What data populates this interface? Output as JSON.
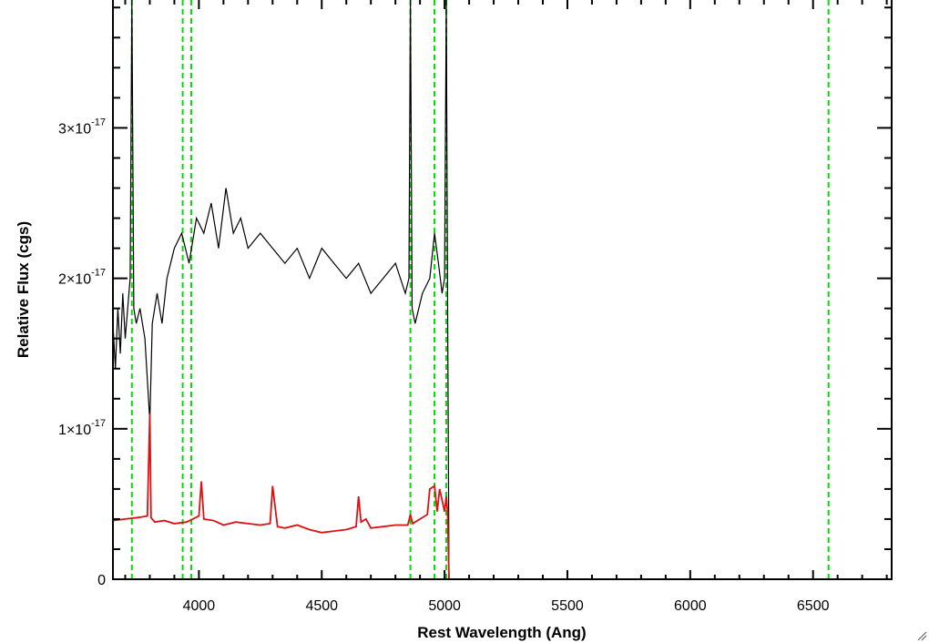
{
  "chart_data": {
    "type": "line",
    "title": "",
    "xlabel": "Rest Wavelength (Ang)",
    "ylabel": "Relative Flux (cgs)",
    "xlim": [
      3650,
      6820
    ],
    "ylim": [
      0,
      3.85e-17
    ],
    "x_ticks": [
      {
        "value": 4000,
        "label": "4000"
      },
      {
        "value": 4500,
        "label": "4500"
      },
      {
        "value": 5000,
        "label": "5000"
      },
      {
        "value": 5500,
        "label": "5500"
      },
      {
        "value": 6000,
        "label": "6000"
      },
      {
        "value": 6500,
        "label": "6500"
      }
    ],
    "y_ticks": [
      {
        "value": 0,
        "mantissa": "0",
        "exponent": ""
      },
      {
        "value": 1e-17,
        "mantissa": "1×10",
        "exponent": "-17"
      },
      {
        "value": 2e-17,
        "mantissa": "2×10",
        "exponent": "-17"
      },
      {
        "value": 3e-17,
        "mantissa": "3×10",
        "exponent": "-17"
      }
    ],
    "reference_lines": {
      "color": "#00e000",
      "style": "dashed",
      "x": [
        3727,
        3934,
        3969,
        4861,
        4959,
        5007,
        6563
      ]
    },
    "series": [
      {
        "color": "#000000",
        "x": [
          3650,
          3660,
          3670,
          3680,
          3690,
          3700,
          3710,
          3720,
          3727,
          3735,
          3745,
          3760,
          3780,
          3800,
          3810,
          3830,
          3850,
          3870,
          3900,
          3930,
          3960,
          3990,
          4020,
          4050,
          4080,
          4110,
          4140,
          4170,
          4200,
          4250,
          4300,
          4350,
          4400,
          4450,
          4500,
          4550,
          4600,
          4650,
          4700,
          4750,
          4800,
          4840,
          4855,
          4861,
          4868,
          4880,
          4910,
          4940,
          4959,
          4975,
          4990,
          5000,
          5007,
          5012,
          5018
        ],
        "values": [
          1.7e-17,
          1.4e-17,
          1.8e-17,
          1.5e-17,
          1.9e-17,
          1.6e-17,
          1.8e-17,
          2e-17,
          3.85e-17,
          1.8e-17,
          1.7e-17,
          1.8e-17,
          1.6e-17,
          1.05e-17,
          1.7e-17,
          1.9e-17,
          1.7e-17,
          2e-17,
          2.2e-17,
          2.3e-17,
          2.1e-17,
          2.4e-17,
          2.3e-17,
          2.5e-17,
          2.2e-17,
          2.6e-17,
          2.3e-17,
          2.4e-17,
          2.2e-17,
          2.3e-17,
          2.2e-17,
          2.1e-17,
          2.2e-17,
          2e-17,
          2.2e-17,
          2.1e-17,
          2e-17,
          2.1e-17,
          1.9e-17,
          2e-17,
          2.1e-17,
          1.9e-17,
          2e-17,
          3.85e-17,
          1.8e-17,
          1.7e-17,
          1.9e-17,
          2e-17,
          2.3e-17,
          2.1e-17,
          1.9e-17,
          2e-17,
          3.85e-17,
          1.9e-17,
          0
        ]
      },
      {
        "color": "#dd1111",
        "x": [
          3650,
          3700,
          3750,
          3790,
          3800,
          3805,
          3820,
          3860,
          3900,
          3950,
          4000,
          4010,
          4020,
          4060,
          4100,
          4150,
          4200,
          4250,
          4290,
          4300,
          4320,
          4350,
          4400,
          4450,
          4500,
          4550,
          4600,
          4640,
          4650,
          4660,
          4680,
          4700,
          4750,
          4800,
          4850,
          4861,
          4870,
          4900,
          4930,
          4940,
          4959,
          4970,
          4980,
          5000,
          5007,
          5012,
          5018
        ],
        "values": [
          3.9e-18,
          4e-18,
          4.1e-18,
          4.2e-18,
          1.1e-17,
          4.1e-18,
          3.8e-18,
          3.9e-18,
          3.7e-18,
          3.8e-18,
          4.2e-18,
          6.5e-18,
          4e-18,
          3.9e-18,
          3.6e-18,
          3.8e-18,
          3.7e-18,
          3.6e-18,
          3.7e-18,
          6.2e-18,
          3.5e-18,
          3.4e-18,
          3.6e-18,
          3.3e-18,
          3.1e-18,
          3.2e-18,
          3.3e-18,
          3.5e-18,
          5.5e-18,
          3.8e-18,
          4e-18,
          3.4e-18,
          3.5e-18,
          3.6e-18,
          3.6e-18,
          4.3e-18,
          3.7e-18,
          4e-18,
          4.3e-18,
          6e-18,
          6.2e-18,
          4.5e-18,
          6e-18,
          4.5e-18,
          5.5e-18,
          4.5e-18,
          0
        ]
      }
    ]
  }
}
